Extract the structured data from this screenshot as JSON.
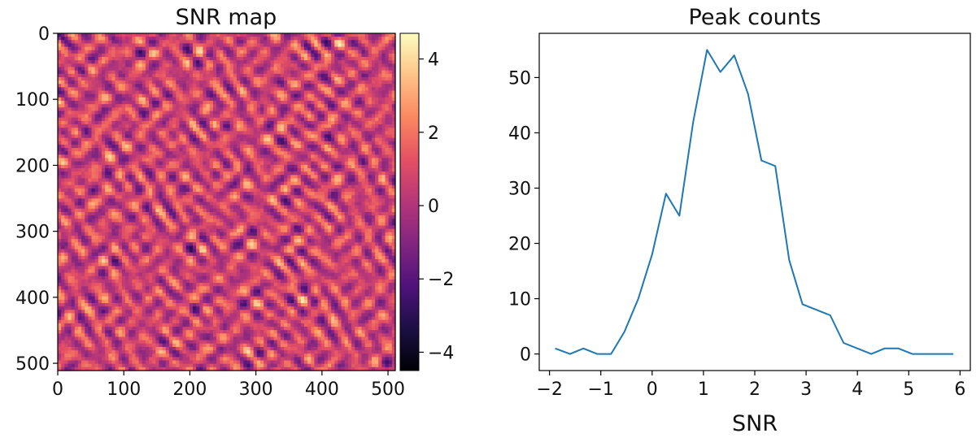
{
  "colors": {
    "line": "#1f77b4",
    "axis": "#000000",
    "colormap": [
      "#000004",
      "#1c1044",
      "#4f127b",
      "#812581",
      "#b5367a",
      "#e55064",
      "#fb8761",
      "#fec287",
      "#fcfdbf"
    ]
  },
  "chart_data": [
    {
      "type": "heatmap",
      "title": "SNR map",
      "xlabel": "",
      "ylabel": "",
      "xlim": [
        0,
        511
      ],
      "ylim": [
        511,
        0
      ],
      "x_ticks": [
        "0",
        "100",
        "200",
        "300",
        "400",
        "500"
      ],
      "y_ticks": [
        "0",
        "100",
        "200",
        "300",
        "400",
        "500"
      ],
      "grid_size": 512,
      "colormap": "magma",
      "colorbar": {
        "range": [
          -4.5,
          4.7
        ],
        "ticks": [
          4,
          2,
          0,
          -2,
          -4
        ],
        "tick_labels": [
          "4",
          "2",
          "0",
          "−2",
          "−4"
        ]
      }
    },
    {
      "type": "line",
      "title": "Peak counts",
      "xlabel": "SNR",
      "ylabel": "",
      "xlim": [
        -2.2,
        6.2
      ],
      "ylim": [
        -3,
        58
      ],
      "x_ticks": [
        -2,
        -1,
        0,
        1,
        2,
        3,
        4,
        5,
        6
      ],
      "x_tick_labels": [
        "−2",
        "−1",
        "0",
        "1",
        "2",
        "3",
        "4",
        "5",
        "6"
      ],
      "y_ticks": [
        0,
        10,
        20,
        30,
        40,
        50
      ],
      "y_tick_labels": [
        "0",
        "10",
        "20",
        "30",
        "40",
        "50"
      ],
      "grid": false,
      "series": [
        {
          "name": "peak counts",
          "x": [
            -1.89,
            -1.6,
            -1.34,
            -1.07,
            -0.8,
            -0.54,
            -0.27,
            0.0,
            0.27,
            0.53,
            0.8,
            1.07,
            1.33,
            1.6,
            1.87,
            2.13,
            2.4,
            2.67,
            2.93,
            3.2,
            3.47,
            3.73,
            4.0,
            4.27,
            4.53,
            4.8,
            5.07,
            5.33,
            5.6,
            5.87
          ],
          "values": [
            1,
            0,
            1,
            0,
            0,
            4,
            10,
            18,
            29,
            25,
            42,
            55,
            51,
            54,
            47,
            35,
            34,
            17,
            9,
            8,
            7,
            2,
            1,
            0,
            1,
            1,
            0,
            0,
            0,
            0
          ]
        }
      ]
    }
  ]
}
